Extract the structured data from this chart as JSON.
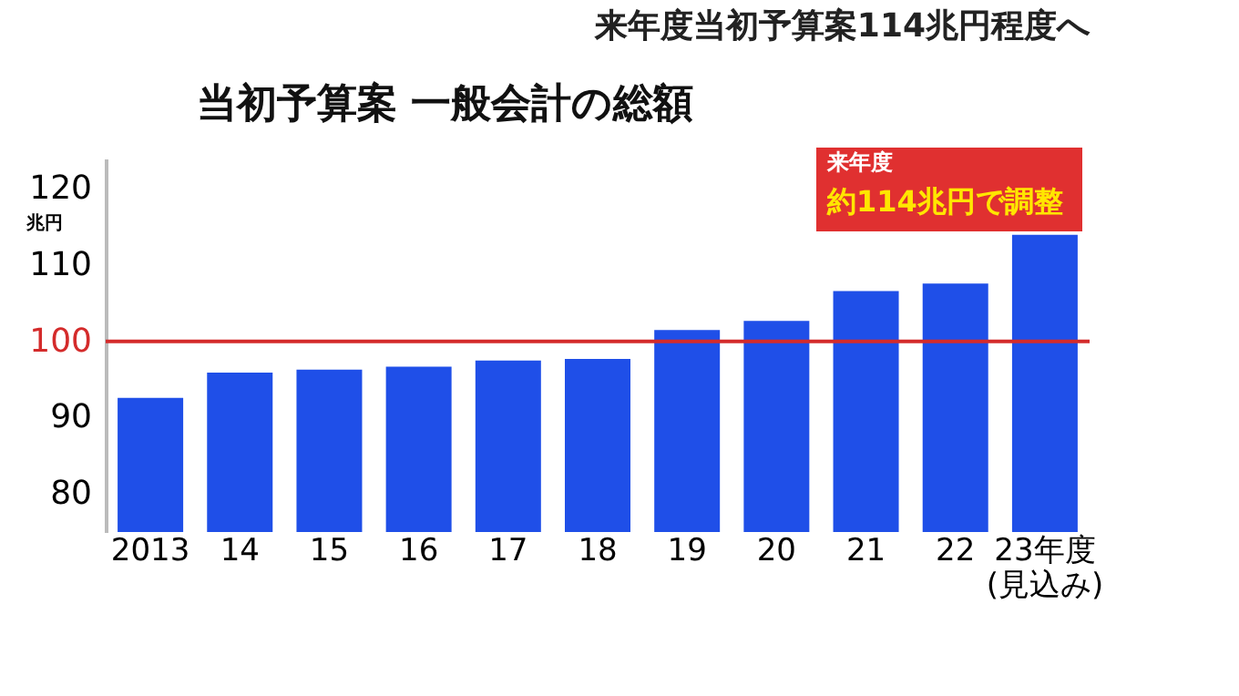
{
  "chart_data": {
    "type": "bar",
    "title": "当初予算案 一般会計の総額",
    "ylabel": "兆円",
    "categories": [
      "2013",
      "14",
      "15",
      "16",
      "17",
      "18",
      "19",
      "20",
      "21",
      "22",
      "23年度\n(見込み)"
    ],
    "values": [
      92.6,
      95.9,
      96.3,
      96.7,
      97.5,
      97.7,
      101.5,
      102.7,
      106.6,
      107.6,
      114.0
    ],
    "color": "#1f4fe8",
    "ylim": [
      75,
      124
    ],
    "yticks": [
      80,
      90,
      100,
      110,
      120
    ],
    "grid": false,
    "ref_lines": [
      {
        "axis": "y",
        "value": 100,
        "label": null,
        "color": "#d42b2b"
      }
    ],
    "annotations": [
      "来年度当初予算案114兆円程度へ",
      "来年度",
      "約114兆円で調整"
    ]
  }
}
